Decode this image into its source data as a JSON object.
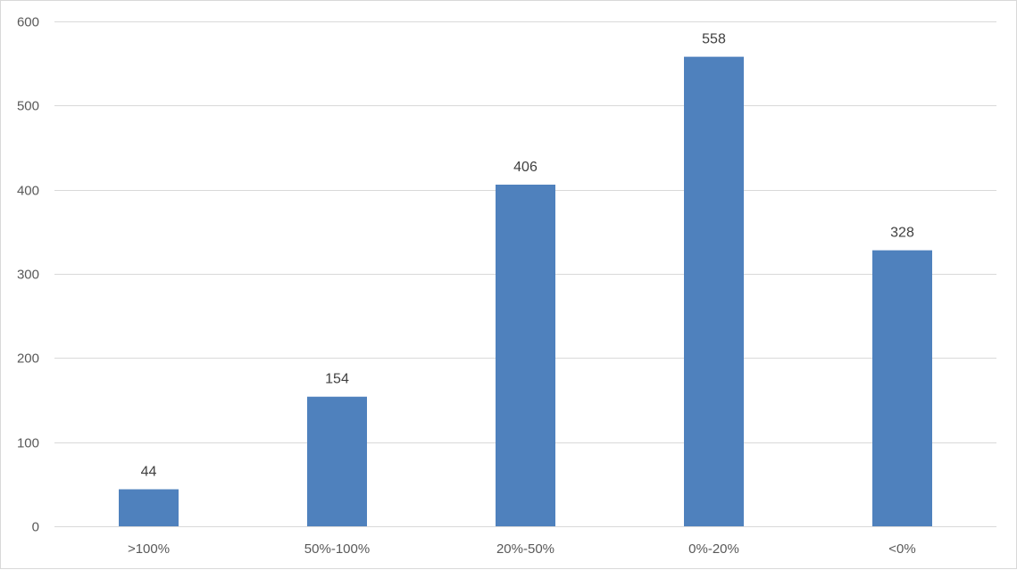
{
  "chart_data": {
    "type": "bar",
    "title": "",
    "xlabel": "",
    "ylabel": "",
    "categories": [
      ">100%",
      "50%-100%",
      "20%-50%",
      "0%-20%",
      "<0%"
    ],
    "values": [
      44,
      154,
      406,
      558,
      328
    ],
    "data_labels": [
      "44",
      "154",
      "406",
      "558",
      "328"
    ],
    "ylim": [
      0,
      600
    ],
    "yticks": [
      0,
      100,
      200,
      300,
      400,
      500,
      600
    ],
    "ytick_labels": [
      "0",
      "100",
      "200",
      "300",
      "400",
      "500",
      "600"
    ],
    "grid": true,
    "legend": "none",
    "bar_color": "#4f81bd",
    "grid_color": "#d9d9d9"
  }
}
